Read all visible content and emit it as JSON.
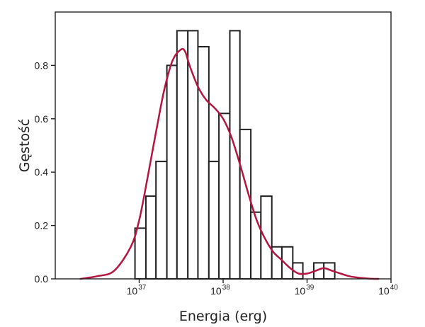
{
  "chart_data": {
    "type": "bar",
    "subtype": "histogram-with-density-curve",
    "xlabel": "Energia (erg)",
    "ylabel": "Gęstość",
    "x_scale": "log10",
    "xlim": [
      1e+36,
      1e+40
    ],
    "ylim": [
      0,
      1.0
    ],
    "grid": false,
    "legend": "none",
    "x_ticks": [
      {
        "value": 1e+37,
        "base": "10",
        "exp": "37"
      },
      {
        "value": 1e+38,
        "base": "10",
        "exp": "38"
      },
      {
        "value": 1e+39,
        "base": "10",
        "exp": "39"
      },
      {
        "value": 1e+40,
        "base": "10",
        "exp": "40"
      }
    ],
    "y_ticks": [
      "0.0",
      "0.2",
      "0.4",
      "0.6",
      "0.8"
    ],
    "y_tick_values": [
      0.0,
      0.2,
      0.4,
      0.6,
      0.8
    ],
    "bins": [
      {
        "log10_start": 36.95,
        "log10_end": 37.08,
        "density": 0.19
      },
      {
        "log10_start": 37.08,
        "log10_end": 37.2,
        "density": 0.31
      },
      {
        "log10_start": 37.2,
        "log10_end": 37.33,
        "density": 0.44
      },
      {
        "log10_start": 37.33,
        "log10_end": 37.45,
        "density": 0.8
      },
      {
        "log10_start": 37.45,
        "log10_end": 37.58,
        "density": 0.93
      },
      {
        "log10_start": 37.58,
        "log10_end": 37.7,
        "density": 0.93
      },
      {
        "log10_start": 37.7,
        "log10_end": 37.83,
        "density": 0.87
      },
      {
        "log10_start": 37.83,
        "log10_end": 37.95,
        "density": 0.44
      },
      {
        "log10_start": 37.95,
        "log10_end": 38.08,
        "density": 0.62
      },
      {
        "log10_start": 38.08,
        "log10_end": 38.2,
        "density": 0.93
      },
      {
        "log10_start": 38.2,
        "log10_end": 38.33,
        "density": 0.56
      },
      {
        "log10_start": 38.33,
        "log10_end": 38.45,
        "density": 0.25
      },
      {
        "log10_start": 38.45,
        "log10_end": 38.58,
        "density": 0.31
      },
      {
        "log10_start": 38.58,
        "log10_end": 38.7,
        "density": 0.12
      },
      {
        "log10_start": 38.7,
        "log10_end": 38.83,
        "density": 0.12
      },
      {
        "log10_start": 38.83,
        "log10_end": 38.95,
        "density": 0.06
      },
      {
        "log10_start": 39.08,
        "log10_end": 39.2,
        "density": 0.06
      },
      {
        "log10_start": 39.2,
        "log10_end": 39.33,
        "density": 0.06
      }
    ],
    "kde_color": "#b5163f",
    "bar_edge_color": "#222222",
    "kde_log10_x": [
      36.3,
      36.5,
      36.7,
      36.9,
      37.0,
      37.1,
      37.2,
      37.3,
      37.4,
      37.5,
      37.55,
      37.6,
      37.7,
      37.8,
      37.9,
      38.0,
      38.1,
      38.2,
      38.3,
      38.4,
      38.5,
      38.6,
      38.7,
      38.8,
      38.9,
      39.0,
      39.1,
      39.2,
      39.3,
      39.4,
      39.5,
      39.6,
      39.7,
      39.8,
      39.85
    ],
    "kde_density": [
      0.0,
      0.01,
      0.03,
      0.12,
      0.22,
      0.38,
      0.55,
      0.71,
      0.82,
      0.86,
      0.85,
      0.8,
      0.72,
      0.67,
      0.64,
      0.6,
      0.53,
      0.43,
      0.32,
      0.22,
      0.15,
      0.1,
      0.07,
      0.04,
      0.02,
      0.02,
      0.03,
      0.04,
      0.03,
      0.02,
      0.01,
      0.005,
      0.002,
      0.0,
      0.0
    ]
  }
}
